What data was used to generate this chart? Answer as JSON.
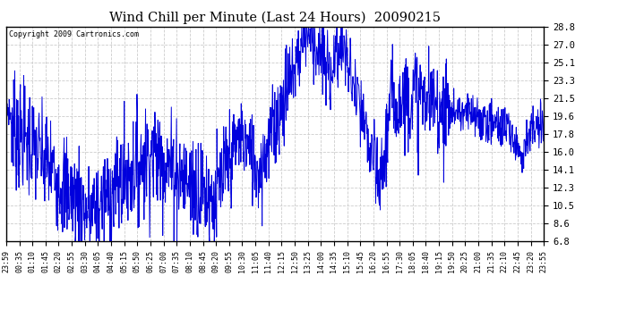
{
  "title": "Wind Chill per Minute (Last 24 Hours)  20090215",
  "copyright": "Copyright 2009 Cartronics.com",
  "line_color": "#0000dd",
  "bg_color": "#ffffff",
  "grid_color": "#cccccc",
  "ylim": [
    6.8,
    28.8
  ],
  "yticks": [
    6.8,
    8.6,
    10.5,
    12.3,
    14.1,
    16.0,
    17.8,
    19.6,
    21.5,
    23.3,
    25.1,
    27.0,
    28.8
  ],
  "xtick_labels": [
    "23:59",
    "00:35",
    "01:10",
    "01:45",
    "02:20",
    "02:55",
    "03:30",
    "04:05",
    "04:40",
    "05:15",
    "05:50",
    "06:25",
    "07:00",
    "07:35",
    "08:10",
    "08:45",
    "09:20",
    "09:55",
    "10:30",
    "11:05",
    "11:40",
    "12:15",
    "12:50",
    "13:25",
    "14:00",
    "14:35",
    "15:10",
    "15:45",
    "16:20",
    "16:55",
    "17:30",
    "18:05",
    "18:40",
    "19:15",
    "19:50",
    "20:25",
    "21:00",
    "21:35",
    "22:10",
    "22:45",
    "23:20",
    "23:55"
  ],
  "num_points": 1440,
  "figwidth": 6.9,
  "figheight": 3.75,
  "dpi": 100
}
